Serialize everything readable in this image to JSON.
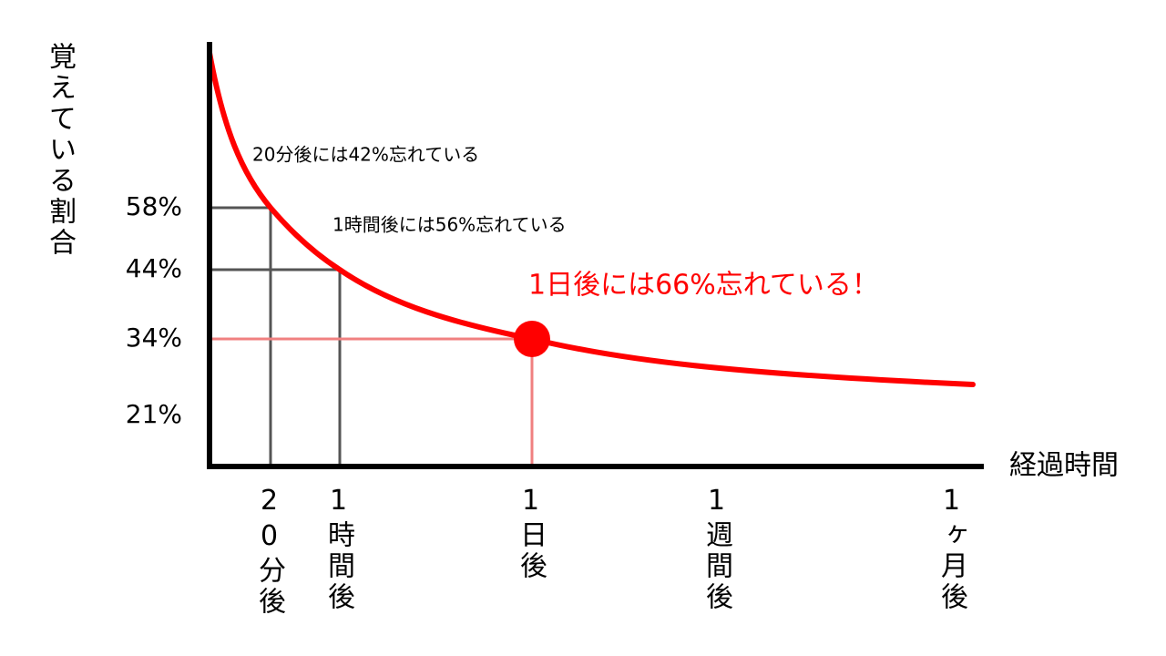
{
  "chart_data": {
    "type": "line",
    "y_label": "覚えている割合",
    "x_label": "経過時間",
    "categories": [
      "20分後",
      "1時間後",
      "1日後",
      "1週間後",
      "1ヶ月後"
    ],
    "series": [
      {
        "name": "覚えている割合",
        "color": "#ff0000",
        "values": [
          58,
          44,
          34,
          null,
          null
        ]
      }
    ],
    "yticks": [
      {
        "value": 58,
        "label": "58%"
      },
      {
        "value": 44,
        "label": "44%"
      },
      {
        "value": 34,
        "label": "34%"
      },
      {
        "value": 21,
        "label": "21%"
      }
    ],
    "annotations": [
      "20分後には42%忘れている",
      "1時間後には56%忘れている",
      "1日後には66%忘れている！"
    ]
  }
}
